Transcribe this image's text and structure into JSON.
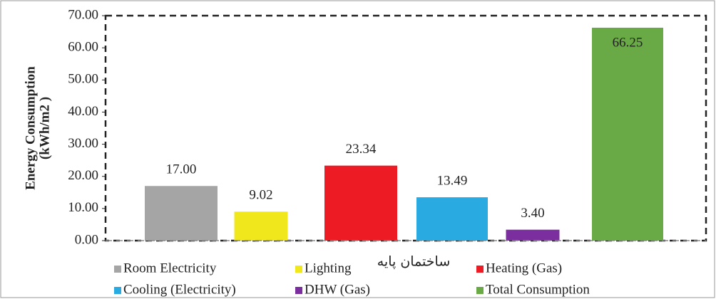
{
  "chart_data": {
    "type": "bar",
    "y_label": [
      "Energy Consumption",
      "(kWh/m2 )"
    ],
    "categories": [
      "ساختمان پایه"
    ],
    "series": [
      {
        "name": "Room Electricity",
        "color": "#a5a5a5",
        "values": [
          17.0
        ],
        "value_labels": [
          "17.00"
        ]
      },
      {
        "name": "Lighting",
        "color": "#f0e81c",
        "values": [
          9.02
        ],
        "value_labels": [
          "9.02"
        ]
      },
      {
        "name": "Heating (Gas)",
        "color": "#ed1c24",
        "values": [
          23.34
        ],
        "value_labels": [
          "23.34"
        ]
      },
      {
        "name": "Cooling (Electricity)",
        "color": "#29abe2",
        "values": [
          13.49
        ],
        "value_labels": [
          "13.49"
        ]
      },
      {
        "name": "DHW (Gas)",
        "color": "#7b2f9e",
        "values": [
          3.4
        ],
        "value_labels": [
          "3.40"
        ]
      },
      {
        "name": "Total Consumption",
        "color": "#6aaa46",
        "values": [
          66.25
        ],
        "value_labels": [
          "66.25"
        ]
      }
    ],
    "ylim": [
      0,
      70
    ],
    "yticks": [
      {
        "value": 0,
        "label": "0.00"
      },
      {
        "value": 10,
        "label": "10.00"
      },
      {
        "value": 20,
        "label": "20.00"
      },
      {
        "value": 30,
        "label": "30.00"
      },
      {
        "value": 40,
        "label": "40.00"
      },
      {
        "value": 50,
        "label": "50.00"
      },
      {
        "value": 60,
        "label": "60.00"
      },
      {
        "value": 70,
        "label": "70.00"
      }
    ]
  }
}
